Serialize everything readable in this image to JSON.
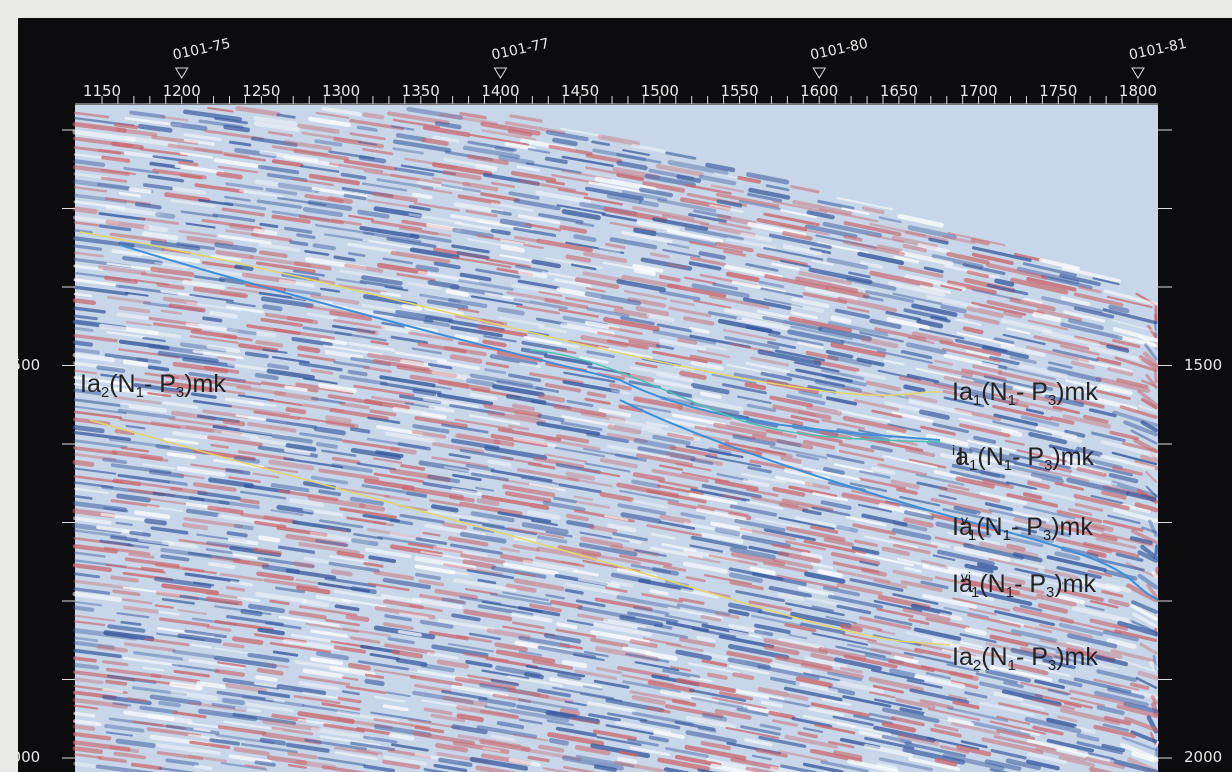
{
  "top_axis": {
    "ticks": [
      1150,
      1200,
      1250,
      1300,
      1350,
      1400,
      1450,
      1500,
      1550,
      1600,
      1650,
      1700,
      1750,
      1800
    ]
  },
  "wells": [
    {
      "label": "0101-75",
      "at": 1200
    },
    {
      "label": "0101-77",
      "at": 1400
    },
    {
      "label": "0101-80",
      "at": 1600
    },
    {
      "label": "0101-81",
      "at": 1800
    }
  ],
  "depth_axis": {
    "ticks": [
      1500,
      2000
    ]
  },
  "horizons": [
    {
      "side": "left",
      "segments": [
        {
          "text": "Ia",
          "style": "normal"
        },
        {
          "text": "2",
          "style": "sub"
        },
        {
          "text": "(N",
          "style": "normal"
        },
        {
          "text": "1",
          "style": "sub"
        },
        {
          "text": "- P",
          "style": "normal"
        },
        {
          "text": "3",
          "style": "sub"
        },
        {
          "text": ")mk",
          "style": "normal"
        }
      ]
    },
    {
      "side": "right",
      "segments": [
        {
          "text": "Ia",
          "style": "normal"
        },
        {
          "text": "1",
          "style": "sub"
        },
        {
          "text": "(N",
          "style": "normal"
        },
        {
          "text": "1",
          "style": "sub"
        },
        {
          "text": "- P",
          "style": "normal"
        },
        {
          "text": "3",
          "style": "sub"
        },
        {
          "text": ")mk",
          "style": "normal"
        }
      ]
    },
    {
      "side": "right",
      "segments": [
        {
          "text": "I",
          "style": "normal"
        },
        {
          "text": "i",
          "style": "sup"
        },
        {
          "text": "a",
          "style": "normal"
        },
        {
          "text": "1",
          "style": "sub"
        },
        {
          "text": "(N",
          "style": "normal"
        },
        {
          "text": "1",
          "style": "sub"
        },
        {
          "text": "- P",
          "style": "normal"
        },
        {
          "text": "3",
          "style": "sub"
        },
        {
          "text": ")mk",
          "style": "normal"
        }
      ]
    },
    {
      "side": "right",
      "segments": [
        {
          "text": "Ia",
          "style": "normal"
        },
        {
          "text": "v",
          "style": "sup"
        },
        {
          "text": "1",
          "style": "sub"
        },
        {
          "text": "(N",
          "style": "normal"
        },
        {
          "text": "1",
          "style": "sub"
        },
        {
          "text": "- P",
          "style": "normal"
        },
        {
          "text": "3",
          "style": "sub"
        },
        {
          "text": ")mk",
          "style": "normal"
        }
      ]
    },
    {
      "side": "right",
      "segments": [
        {
          "text": "Ia",
          "style": "normal"
        },
        {
          "text": "vi",
          "style": "sup"
        },
        {
          "text": "1",
          "style": "sub"
        },
        {
          "text": "(N",
          "style": "normal"
        },
        {
          "text": "1",
          "style": "sub"
        },
        {
          "text": "- P",
          "style": "normal"
        },
        {
          "text": "3",
          "style": "sub"
        },
        {
          "text": ")mk",
          "style": "normal"
        }
      ]
    },
    {
      "side": "right",
      "segments": [
        {
          "text": "Ia",
          "style": "normal"
        },
        {
          "text": "2",
          "style": "sub"
        },
        {
          "text": "(N",
          "style": "normal"
        },
        {
          "text": "1",
          "style": "sub"
        },
        {
          "text": "- P",
          "style": "normal"
        },
        {
          "text": "3",
          "style": "sub"
        },
        {
          "text": ")mk",
          "style": "normal"
        }
      ]
    }
  ]
}
